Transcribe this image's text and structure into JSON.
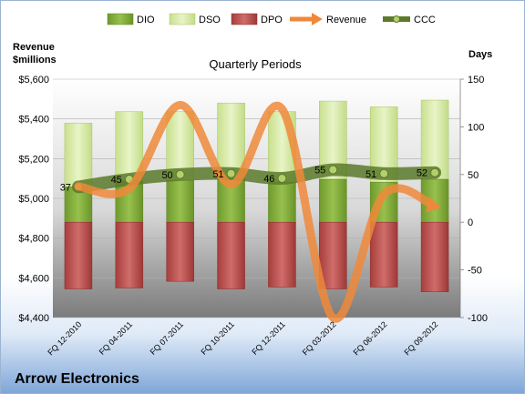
{
  "company": "Arrow Electronics",
  "chart_data": {
    "type": "bar",
    "title": "Quarterly Periods",
    "left_axis": {
      "title_line1": "Revenue",
      "title_line2": "$millions",
      "min": 4400,
      "max": 5600,
      "ticks": [
        "$4,400",
        "$4,600",
        "$4,800",
        "$5,000",
        "$5,200",
        "$5,400",
        "$5,600"
      ],
      "tick_values": [
        4400,
        4600,
        4800,
        5000,
        5200,
        5400,
        5600
      ]
    },
    "right_axis": {
      "title": "Days",
      "min": -100,
      "max": 150,
      "ticks": [
        "-100",
        "-50",
        "0",
        "50",
        "100",
        "150"
      ],
      "tick_values": [
        -100,
        -50,
        0,
        50,
        100,
        150
      ]
    },
    "categories": [
      "FQ 12-2010",
      "FQ 04-2011",
      "FQ 07-2011",
      "FQ 10-2011",
      "FQ 12-2011",
      "FQ 03-2012",
      "FQ 06-2012",
      "FQ 09-2012"
    ],
    "legend": [
      "DIO",
      "DSO",
      "DPO",
      "Revenue",
      "CCC"
    ],
    "legend_position": "top",
    "series": [
      {
        "name": "DIO",
        "axis": "right",
        "color": "#7fa83a",
        "values": [
          37,
          43,
          44,
          46,
          42,
          45,
          42,
          45
        ]
      },
      {
        "name": "DSO",
        "axis": "right",
        "color": "#d9ebb0",
        "values": [
          67,
          73,
          72,
          79,
          74,
          82,
          79,
          83
        ]
      },
      {
        "name": "DPO",
        "axis": "right",
        "color": "#b84e4c",
        "values": [
          -70,
          -69,
          -62,
          -70,
          -68,
          -70,
          -68,
          -73
        ]
      },
      {
        "name": "Revenue",
        "axis": "left",
        "color": "#f0883a",
        "values": [
          5060,
          5050,
          5470,
          5070,
          5450,
          4400,
          5020,
          4960
        ]
      },
      {
        "name": "CCC",
        "axis": "right",
        "color": "#5b7a2a",
        "values": [
          37,
          45,
          50,
          51,
          46,
          55,
          51,
          52
        ]
      }
    ],
    "data_labels": [
      "37",
      "45",
      "50",
      "51",
      "46",
      "55",
      "51",
      "52"
    ],
    "grid": true
  }
}
